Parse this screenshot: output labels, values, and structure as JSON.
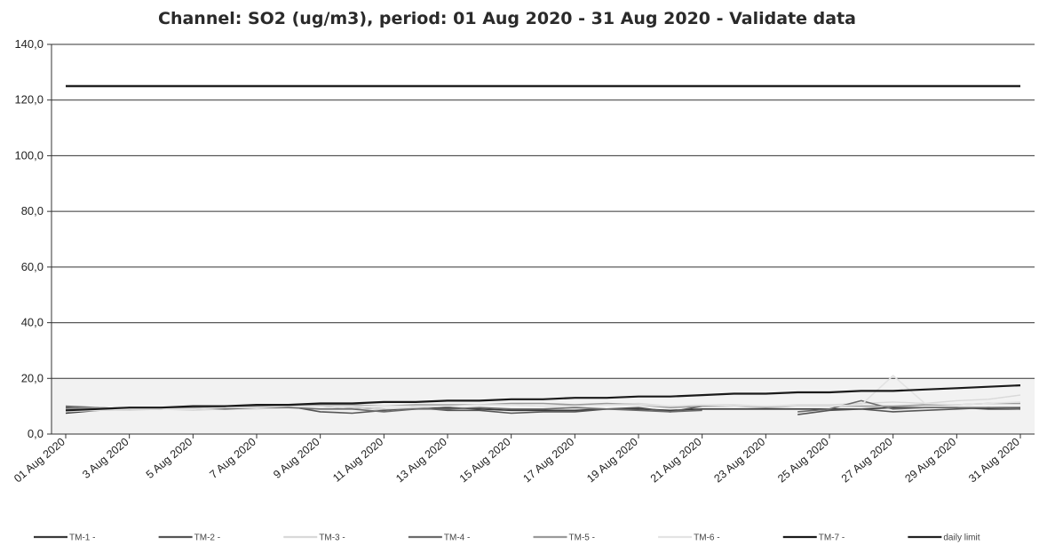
{
  "chart_data": {
    "type": "line",
    "title": "Channel: SO2 (ug/m3), period: 01 Aug 2020 - 31 Aug 2020 - Validate data",
    "xlabel": "",
    "ylabel": "",
    "ylim": [
      0,
      140
    ],
    "y_ticks": [
      "0,0",
      "20,0",
      "40,0",
      "60,0",
      "80,0",
      "100,0",
      "120,0",
      "140,0"
    ],
    "x_tick_labels": [
      "01 Aug 2020",
      "3 Aug 2020",
      "5 Aug 2020",
      "7 Aug 2020",
      "9 Aug 2020",
      "11 Aug 2020",
      "13 Aug 2020",
      "15 Aug 2020",
      "17 Aug 2020",
      "19 Aug 2020",
      "21 Aug 2020",
      "23 Aug 2020",
      "25 Aug 2020",
      "27 Aug 2020",
      "29 Aug 2020",
      "31 Aug 2020"
    ],
    "x": [
      "01 Aug 2020",
      "02 Aug 2020",
      "03 Aug 2020",
      "04 Aug 2020",
      "05 Aug 2020",
      "06 Aug 2020",
      "07 Aug 2020",
      "08 Aug 2020",
      "09 Aug 2020",
      "10 Aug 2020",
      "11 Aug 2020",
      "12 Aug 2020",
      "13 Aug 2020",
      "14 Aug 2020",
      "15 Aug 2020",
      "16 Aug 2020",
      "17 Aug 2020",
      "18 Aug 2020",
      "19 Aug 2020",
      "20 Aug 2020",
      "21 Aug 2020",
      "22 Aug 2020",
      "23 Aug 2020",
      "24 Aug 2020",
      "25 Aug 2020",
      "26 Aug 2020",
      "27 Aug 2020",
      "28 Aug 2020",
      "29 Aug 2020",
      "30 Aug 2020",
      "31 Aug 2020"
    ],
    "grid": true,
    "legend_position": "bottom",
    "series": [
      {
        "name": "TM-1 -",
        "color": "#3a3a3a",
        "width": 1.6,
        "values": [
          7.5,
          8.5,
          9.0,
          9.0,
          9.5,
          9.5,
          9.5,
          10.0,
          10.0,
          9.5,
          9.0,
          9.0,
          9.5,
          9.0,
          8.5,
          8.5,
          8.5,
          9.0,
          9.0,
          8.5,
          9.0,
          9.0,
          9.0,
          9.0,
          9.0,
          9.0,
          9.5,
          9.5,
          9.5,
          9.0,
          9.0
        ]
      },
      {
        "name": "TM-2 -",
        "color": "#555555",
        "width": 1.6,
        "values": [
          9.5,
          9.0,
          9.5,
          9.5,
          9.0,
          9.5,
          10.0,
          10.0,
          8.0,
          7.5,
          8.5,
          9.5,
          8.5,
          8.5,
          7.5,
          8.0,
          8.0,
          9.0,
          9.5,
          8.0,
          10.0,
          null,
          null,
          7.0,
          8.5,
          9.0,
          8.0,
          8.5,
          9.0,
          9.5,
          9.5
        ]
      },
      {
        "name": "TM-3 -",
        "color": "#d9d9d9",
        "width": 1.4,
        "values": [
          8.0,
          8.5,
          8.5,
          9.0,
          8.5,
          9.0,
          9.0,
          9.5,
          10.0,
          9.5,
          9.0,
          9.5,
          10.0,
          10.5,
          10.5,
          10.0,
          10.5,
          10.5,
          11.0,
          10.0,
          10.5,
          10.5,
          10.0,
          10.5,
          10.5,
          11.0,
          11.5,
          11.0,
          12.0,
          12.5,
          14.0
        ]
      },
      {
        "name": "TM-4 -",
        "color": "#6b6b6b",
        "width": 1.6,
        "values": [
          10.0,
          9.5,
          9.0,
          9.5,
          9.5,
          9.0,
          9.5,
          9.5,
          9.0,
          9.0,
          8.0,
          9.0,
          9.0,
          9.5,
          9.0,
          9.0,
          9.5,
          9.0,
          8.5,
          8.0,
          8.5,
          null,
          null,
          8.0,
          9.0,
          12.0,
          9.0,
          9.5,
          9.5,
          9.5,
          9.0
        ]
      },
      {
        "name": "TM-5 -",
        "color": "#9a9a9a",
        "width": 1.6,
        "values": [
          9.0,
          9.5,
          9.0,
          9.0,
          9.5,
          10.0,
          10.0,
          10.0,
          10.5,
          10.5,
          10.0,
          10.5,
          10.5,
          10.5,
          11.0,
          11.0,
          10.5,
          11.0,
          10.5,
          9.5,
          10.0,
          10.0,
          9.5,
          10.0,
          10.0,
          10.0,
          10.0,
          10.5,
          10.5,
          11.0,
          11.0
        ]
      },
      {
        "name": "TM-6 -",
        "color": "#e3e3e3",
        "width": 1.6,
        "values": [
          8.5,
          8.5,
          9.0,
          9.0,
          9.0,
          9.5,
          9.5,
          10.0,
          10.0,
          10.0,
          10.0,
          10.0,
          10.0,
          10.5,
          10.5,
          10.0,
          10.0,
          10.5,
          10.5,
          10.0,
          10.5,
          10.0,
          10.0,
          10.0,
          10.0,
          10.5,
          21.0,
          11.0,
          10.5,
          11.0,
          11.5
        ]
      },
      {
        "name": "TM-7 -",
        "color": "#1a1a1a",
        "width": 2.2,
        "values": [
          8.5,
          9.0,
          9.5,
          9.5,
          10.0,
          10.0,
          10.5,
          10.5,
          11.0,
          11.0,
          11.5,
          11.5,
          12.0,
          12.0,
          12.5,
          12.5,
          13.0,
          13.0,
          13.5,
          13.5,
          14.0,
          14.5,
          14.5,
          15.0,
          15.0,
          15.5,
          15.5,
          16.0,
          16.5,
          17.0,
          17.5
        ]
      },
      {
        "name": "daily limit",
        "color": "#222222",
        "width": 2.6,
        "values": [
          125,
          125,
          125,
          125,
          125,
          125,
          125,
          125,
          125,
          125,
          125,
          125,
          125,
          125,
          125,
          125,
          125,
          125,
          125,
          125,
          125,
          125,
          125,
          125,
          125,
          125,
          125,
          125,
          125,
          125,
          125
        ]
      }
    ]
  }
}
